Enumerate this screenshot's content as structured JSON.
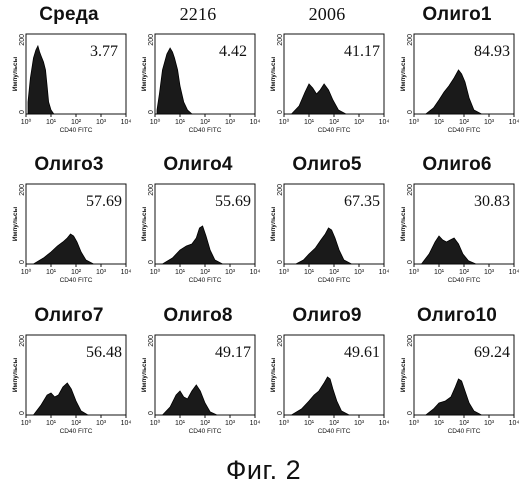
{
  "figure": {
    "caption": "Фиг. 2"
  },
  "chart_data": [
    {
      "type": "area",
      "title": "Среда",
      "value_label": "3.77",
      "xlabel": "CD40 FITC",
      "ylabel": "Импульсы",
      "x_scale": "log",
      "xlim": [
        1,
        10000
      ],
      "ylim": [
        0,
        200
      ],
      "x_ticks": [
        "10⁰",
        "10¹",
        "10²",
        "10³",
        "10⁴"
      ],
      "y_ticks": [
        "0",
        "200"
      ],
      "x": [
        1.2,
        1.5,
        2,
        2.5,
        3,
        3.5,
        4,
        5,
        6,
        7,
        8,
        10,
        13
      ],
      "y": [
        30,
        90,
        140,
        160,
        170,
        155,
        145,
        130,
        110,
        70,
        30,
        10,
        0
      ]
    },
    {
      "type": "area",
      "title": "2216",
      "value_label": "4.42",
      "xlabel": "CD40 FITC",
      "ylabel": "Импульсы",
      "x_scale": "log",
      "xlim": [
        1,
        10000
      ],
      "ylim": [
        0,
        200
      ],
      "x_ticks": [
        "10⁰",
        "10¹",
        "10²",
        "10³",
        "10⁴"
      ],
      "y_ticks": [
        "0",
        "200"
      ],
      "x": [
        1.2,
        1.5,
        2,
        3,
        4,
        5,
        6,
        8,
        10,
        14,
        20,
        30
      ],
      "y": [
        10,
        50,
        110,
        150,
        165,
        155,
        140,
        110,
        70,
        30,
        10,
        0
      ]
    },
    {
      "type": "area",
      "title": "2006",
      "value_label": "41.17",
      "xlabel": "CD40 FITC",
      "ylabel": "Импульсы",
      "x_scale": "log",
      "xlim": [
        1,
        10000
      ],
      "ylim": [
        0,
        200
      ],
      "x_ticks": [
        "10⁰",
        "10¹",
        "10²",
        "10³",
        "10⁴"
      ],
      "y_ticks": [
        "0",
        "200"
      ],
      "x": [
        2,
        4,
        7,
        10,
        14,
        20,
        28,
        40,
        60,
        90,
        150,
        300
      ],
      "y": [
        0,
        20,
        55,
        75,
        65,
        50,
        60,
        75,
        60,
        35,
        10,
        0
      ]
    },
    {
      "type": "area",
      "title": "Олиго1",
      "value_label": "84.93",
      "xlabel": "CD40 FITC",
      "ylabel": "Импульсы",
      "x_scale": "log",
      "xlim": [
        1,
        10000
      ],
      "ylim": [
        0,
        200
      ],
      "x_ticks": [
        "10⁰",
        "10¹",
        "10²",
        "10³",
        "10⁴"
      ],
      "y_ticks": [
        "0",
        "200"
      ],
      "x": [
        3,
        6,
        10,
        16,
        25,
        40,
        60,
        80,
        110,
        160,
        250,
        500
      ],
      "y": [
        0,
        15,
        35,
        55,
        70,
        90,
        110,
        100,
        80,
        40,
        10,
        0
      ]
    },
    {
      "type": "area",
      "title": "Олиго3",
      "value_label": "57.69",
      "xlabel": "CD40 FITC",
      "ylabel": "Импульсы",
      "x_scale": "log",
      "xlim": [
        1,
        10000
      ],
      "ylim": [
        0,
        200
      ],
      "x_ticks": [
        "10⁰",
        "10¹",
        "10²",
        "10³",
        "10⁴"
      ],
      "y_ticks": [
        "0",
        "200"
      ],
      "x": [
        2,
        5,
        10,
        18,
        30,
        45,
        60,
        80,
        110,
        160,
        250,
        500
      ],
      "y": [
        0,
        15,
        30,
        45,
        55,
        65,
        75,
        70,
        55,
        30,
        10,
        0
      ]
    },
    {
      "type": "area",
      "title": "Олиго4",
      "value_label": "55.69",
      "xlabel": "CD40 FITC",
      "ylabel": "Импульсы",
      "x_scale": "log",
      "xlim": [
        1,
        10000
      ],
      "ylim": [
        0,
        200
      ],
      "x_ticks": [
        "10⁰",
        "10¹",
        "10²",
        "10³",
        "10⁴"
      ],
      "y_ticks": [
        "0",
        "200"
      ],
      "x": [
        2,
        5,
        10,
        18,
        30,
        45,
        60,
        80,
        110,
        160,
        250,
        500
      ],
      "y": [
        0,
        15,
        35,
        45,
        50,
        65,
        90,
        95,
        70,
        35,
        10,
        0
      ]
    },
    {
      "type": "area",
      "title": "Олиго5",
      "value_label": "67.35",
      "xlabel": "CD40 FITC",
      "ylabel": "Импульсы",
      "x_scale": "log",
      "xlim": [
        1,
        10000
      ],
      "ylim": [
        0,
        200
      ],
      "x_ticks": [
        "10⁰",
        "10¹",
        "10²",
        "10³",
        "10⁴"
      ],
      "y_ticks": [
        "0",
        "200"
      ],
      "x": [
        3,
        6,
        10,
        18,
        30,
        45,
        60,
        80,
        110,
        160,
        250,
        500
      ],
      "y": [
        0,
        10,
        25,
        40,
        60,
        75,
        90,
        85,
        65,
        35,
        10,
        0
      ]
    },
    {
      "type": "area",
      "title": "Олиго6",
      "value_label": "30.83",
      "xlabel": "CD40 FITC",
      "ylabel": "Импульсы",
      "x_scale": "log",
      "xlim": [
        1,
        10000
      ],
      "ylim": [
        0,
        200
      ],
      "x_ticks": [
        "10⁰",
        "10¹",
        "10²",
        "10³",
        "10⁴"
      ],
      "y_ticks": [
        "0",
        "200"
      ],
      "x": [
        2,
        4,
        7,
        10,
        14,
        20,
        28,
        40,
        60,
        90,
        150,
        300
      ],
      "y": [
        0,
        25,
        55,
        70,
        60,
        55,
        60,
        65,
        50,
        25,
        8,
        0
      ]
    },
    {
      "type": "area",
      "title": "Олиго7",
      "value_label": "56.48",
      "xlabel": "CD40 FITC",
      "ylabel": "Импульсы",
      "x_scale": "log",
      "xlim": [
        1,
        10000
      ],
      "ylim": [
        0,
        200
      ],
      "x_ticks": [
        "10⁰",
        "10¹",
        "10²",
        "10³",
        "10⁴"
      ],
      "y_ticks": [
        "0",
        "200"
      ],
      "x": [
        2,
        4,
        7,
        10,
        14,
        20,
        30,
        45,
        65,
        100,
        160,
        300
      ],
      "y": [
        0,
        25,
        50,
        55,
        45,
        50,
        70,
        80,
        65,
        35,
        10,
        0
      ]
    },
    {
      "type": "area",
      "title": "Олиго8",
      "value_label": "49.17",
      "xlabel": "CD40 FITC",
      "ylabel": "Импульсы",
      "x_scale": "log",
      "xlim": [
        1,
        10000
      ],
      "ylim": [
        0,
        200
      ],
      "x_ticks": [
        "10⁰",
        "10¹",
        "10²",
        "10³",
        "10⁴"
      ],
      "y_ticks": [
        "0",
        "200"
      ],
      "x": [
        2,
        4,
        7,
        10,
        14,
        20,
        30,
        45,
        65,
        100,
        160,
        300
      ],
      "y": [
        0,
        20,
        50,
        60,
        45,
        40,
        60,
        75,
        60,
        30,
        8,
        0
      ]
    },
    {
      "type": "area",
      "title": "Олиго9",
      "value_label": "49.61",
      "xlabel": "CD40 FITC",
      "ylabel": "Импульсы",
      "x_scale": "log",
      "xlim": [
        1,
        10000
      ],
      "ylim": [
        0,
        200
      ],
      "x_ticks": [
        "10⁰",
        "10¹",
        "10²",
        "10³",
        "10⁴"
      ],
      "y_ticks": [
        "0",
        "200"
      ],
      "x": [
        2,
        5,
        10,
        16,
        25,
        40,
        55,
        70,
        90,
        130,
        200,
        400
      ],
      "y": [
        0,
        15,
        35,
        50,
        60,
        80,
        95,
        90,
        65,
        35,
        10,
        0
      ]
    },
    {
      "type": "area",
      "title": "Олиго10",
      "value_label": "69.24",
      "xlabel": "CD40 FITC",
      "ylabel": "Импульсы",
      "x_scale": "log",
      "xlim": [
        1,
        10000
      ],
      "ylim": [
        0,
        200
      ],
      "x_ticks": [
        "10⁰",
        "10¹",
        "10²",
        "10³",
        "10⁴"
      ],
      "y_ticks": [
        "0",
        "200"
      ],
      "x": [
        3,
        6,
        10,
        18,
        30,
        45,
        60,
        80,
        110,
        160,
        250,
        500
      ],
      "y": [
        0,
        15,
        30,
        35,
        45,
        70,
        90,
        85,
        60,
        30,
        10,
        0
      ]
    }
  ]
}
